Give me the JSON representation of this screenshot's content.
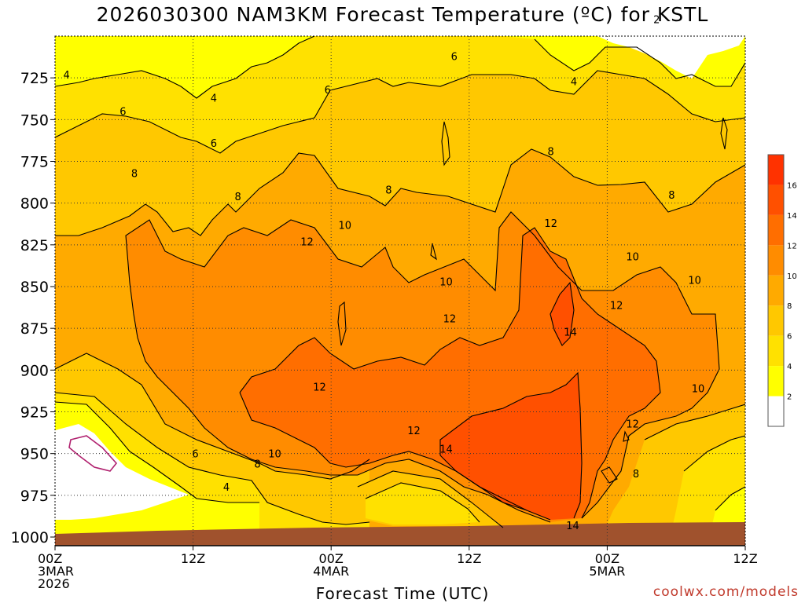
{
  "title": "2026030300 NAM3KM Forecast Temperature (ºC) for KSTL",
  "credit": "coolwx.com/models",
  "chart_data": {
    "type": "heatmap",
    "title": "2026030300 NAM3KM Forecast Temperature (ºC) for KSTL",
    "xlabel": "Forecast Time (UTC)",
    "ylabel": "",
    "x_ticks": [
      {
        "h": 0,
        "lines": [
          "00Z",
          "3MAR",
          "2026"
        ]
      },
      {
        "h": 12,
        "lines": [
          "12Z"
        ]
      },
      {
        "h": 24,
        "lines": [
          "00Z",
          "4MAR"
        ]
      },
      {
        "h": 36,
        "lines": [
          "12Z"
        ]
      },
      {
        "h": 48,
        "lines": [
          "00Z",
          "5MAR"
        ]
      },
      {
        "h": 60,
        "lines": [
          "12Z"
        ]
      }
    ],
    "xlim": [
      0,
      60
    ],
    "y_ticks": [
      725,
      750,
      775,
      800,
      825,
      850,
      875,
      900,
      925,
      950,
      975,
      1000
    ],
    "ylim": [
      1000,
      700
    ],
    "colorbar": {
      "levels": [
        2,
        4,
        6,
        8,
        10,
        12,
        14,
        16
      ],
      "colors": [
        "#ffffff",
        "#ffff00",
        "#ffe100",
        "#ffc800",
        "#ffaa00",
        "#ff8c00",
        "#ff6e00",
        "#ff5000",
        "#ff3200"
      ]
    },
    "contour_labels": [
      {
        "text": "4",
        "h": 1.0,
        "p": 723
      },
      {
        "text": "4",
        "h": 13.8,
        "p": 737
      },
      {
        "text": "6",
        "h": 5.9,
        "p": 745
      },
      {
        "text": "6",
        "h": 13.8,
        "p": 764
      },
      {
        "text": "6",
        "h": 23.7,
        "p": 732
      },
      {
        "text": "6",
        "h": 34.7,
        "p": 712
      },
      {
        "text": "4",
        "h": 45.1,
        "p": 727
      },
      {
        "text": "2",
        "h": 52.3,
        "p": 690
      },
      {
        "text": "8",
        "h": 6.9,
        "p": 782
      },
      {
        "text": "8",
        "h": 15.9,
        "p": 796
      },
      {
        "text": "8",
        "h": 29.0,
        "p": 792
      },
      {
        "text": "8",
        "h": 43.1,
        "p": 769
      },
      {
        "text": "8",
        "h": 53.6,
        "p": 795
      },
      {
        "text": "10",
        "h": 25.2,
        "p": 813
      },
      {
        "text": "10",
        "h": 34.0,
        "p": 847
      },
      {
        "text": "10",
        "h": 50.2,
        "p": 832
      },
      {
        "text": "10",
        "h": 55.6,
        "p": 846
      },
      {
        "text": "10",
        "h": 55.9,
        "p": 911
      },
      {
        "text": "10",
        "h": 19.1,
        "p": 950
      },
      {
        "text": "12",
        "h": 21.9,
        "p": 823
      },
      {
        "text": "12",
        "h": 34.3,
        "p": 869
      },
      {
        "text": "12",
        "h": 23.0,
        "p": 910
      },
      {
        "text": "12",
        "h": 43.1,
        "p": 812
      },
      {
        "text": "12",
        "h": 48.8,
        "p": 861
      },
      {
        "text": "12",
        "h": 31.2,
        "p": 936
      },
      {
        "text": "12",
        "h": 50.2,
        "p": 932
      },
      {
        "text": "14",
        "h": 44.8,
        "p": 877
      },
      {
        "text": "14",
        "h": 34.0,
        "p": 947
      },
      {
        "text": "14",
        "h": 45.0,
        "p": 993
      },
      {
        "text": "6",
        "h": 12.2,
        "p": 950
      },
      {
        "text": "4",
        "h": 14.9,
        "p": 970
      },
      {
        "text": "8",
        "h": 17.6,
        "p": 956
      },
      {
        "text": "8",
        "h": 50.5,
        "p": 962
      }
    ]
  }
}
